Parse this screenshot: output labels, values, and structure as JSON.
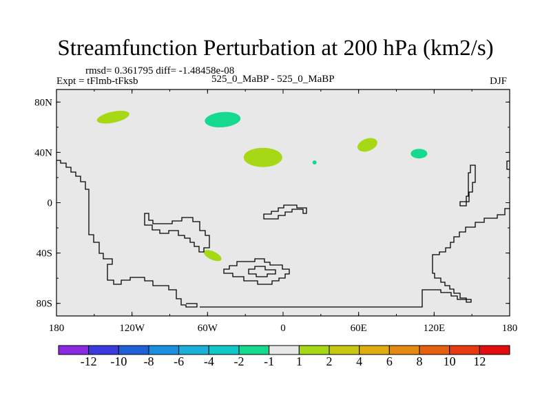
{
  "title": "Streamfunction Perturbation at 200 hPa (km2/s)",
  "subtitle": {
    "stats": "rmsd= 0.361795 diff= -1.48458e-08",
    "experiment": "Expt = tFlmb-tFksb",
    "runs": "525_0_MaBP - 525_0_MaBP",
    "season": "DJF"
  },
  "chart_data": {
    "type": "heatmap",
    "title": "Streamfunction Perturbation at 200 hPa (km2/s)",
    "x_ticks": [
      "180",
      "120W",
      "60W",
      "0",
      "60E",
      "120E",
      "180"
    ],
    "x_tick_values": [
      -180,
      -120,
      -60,
      0,
      60,
      120,
      180
    ],
    "y_ticks": [
      "80N",
      "40N",
      "0",
      "40S",
      "80S"
    ],
    "y_tick_values": [
      80,
      40,
      0,
      -40,
      -80
    ],
    "xlim": [
      -180,
      180
    ],
    "ylim": [
      -90,
      90
    ],
    "colorbar": {
      "levels": [
        "-12",
        "-10",
        "-8",
        "-6",
        "-4",
        "-2",
        "-1",
        "1",
        "2",
        "4",
        "6",
        "8",
        "10",
        "12"
      ],
      "colors": [
        "#8a2be2",
        "#3a3adf",
        "#1f60d9",
        "#1a8fe0",
        "#1ab0d8",
        "#10c8c8",
        "#16d990",
        "#e8e8e8",
        "#a6d816",
        "#c8c814",
        "#e0ac10",
        "#e48a10",
        "#e66010",
        "#e63a10",
        "#e00e0e"
      ]
    },
    "anomalies": [
      {
        "lon": -135,
        "lat": 68,
        "value_range": "1 to 2",
        "color": "#a6d816"
      },
      {
        "lon": -48,
        "lat": 66,
        "value_range": "-1 to -2",
        "color": "#16d990"
      },
      {
        "lon": -16,
        "lat": 36,
        "value_range": "1 to 2",
        "color": "#a6d816"
      },
      {
        "lon": 25,
        "lat": 32,
        "value_range": "-1 to -2",
        "color": "#16d990"
      },
      {
        "lon": 67,
        "lat": 46,
        "value_range": "1 to 2",
        "color": "#a6d816"
      },
      {
        "lon": 108,
        "lat": 39,
        "value_range": "-1 to -2",
        "color": "#16d990"
      },
      {
        "lon": -56,
        "lat": -42,
        "value_range": "1 to 2",
        "color": "#a6d816"
      }
    ]
  }
}
